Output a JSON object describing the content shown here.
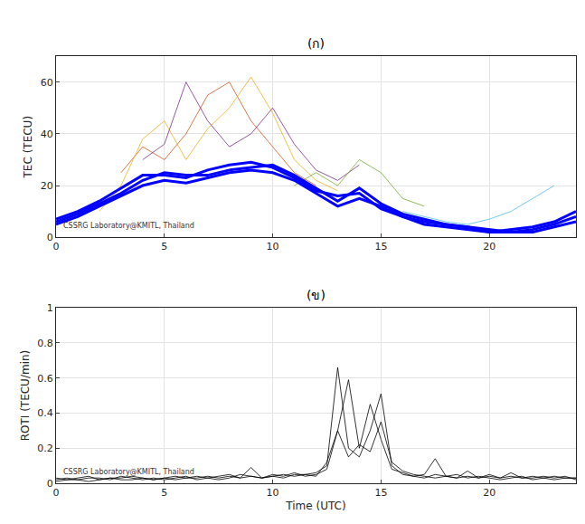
{
  "chart_data": [
    {
      "type": "line",
      "title": "(ก)",
      "ylabel": "TEC (TECU)",
      "annotation": "CSSRG Laboratory@KMITL, Thailand",
      "grid": true,
      "x": [
        0,
        1,
        2,
        3,
        4,
        5,
        6,
        7,
        8,
        9,
        10,
        11,
        12,
        13,
        14,
        15,
        16,
        17,
        18,
        19,
        20,
        21,
        22,
        23,
        24
      ],
      "xlim": [
        0,
        24
      ],
      "xticks": [
        0,
        5,
        10,
        15,
        20
      ],
      "ylim": [
        0,
        70
      ],
      "yticks": [
        0,
        20,
        40,
        60
      ],
      "series": [
        {
          "color": "#d95319",
          "line_style": "thin",
          "values": [
            null,
            null,
            null,
            25,
            35,
            30,
            40,
            55,
            60,
            45,
            35,
            25,
            20,
            null,
            null,
            null,
            null,
            null,
            null,
            null,
            null,
            null,
            null,
            null,
            null
          ]
        },
        {
          "color": "#edb120",
          "line_style": "thin",
          "values": [
            null,
            null,
            10,
            20,
            38,
            45,
            30,
            42,
            50,
            62,
            48,
            30,
            22,
            18,
            null,
            null,
            null,
            null,
            null,
            null,
            null,
            null,
            null,
            null,
            null
          ]
        },
        {
          "color": "#7e2f8e",
          "line_style": "thin",
          "values": [
            null,
            null,
            null,
            null,
            30,
            36,
            60,
            45,
            35,
            40,
            50,
            36,
            26,
            22,
            28,
            null,
            null,
            null,
            null,
            null,
            null,
            null,
            null,
            null,
            null
          ]
        },
        {
          "color": "#77ac30",
          "line_style": "thin",
          "values": [
            null,
            null,
            null,
            null,
            null,
            null,
            null,
            null,
            null,
            null,
            null,
            20,
            25,
            20,
            30,
            25,
            15,
            12,
            null,
            null,
            null,
            null,
            null,
            null,
            null
          ]
        },
        {
          "color": "#4dbeee",
          "line_style": "thin",
          "values": [
            null,
            null,
            null,
            null,
            null,
            null,
            null,
            null,
            null,
            null,
            null,
            null,
            null,
            null,
            null,
            null,
            10,
            8,
            6,
            5,
            7,
            10,
            15,
            20,
            null
          ]
        },
        {
          "color": "#0000ff",
          "line_style": "thick",
          "values": [
            7,
            10,
            14,
            19,
            24,
            24,
            23,
            26,
            28,
            29,
            27,
            23,
            18,
            16,
            17,
            11,
            8,
            6,
            5,
            4,
            2,
            3,
            4,
            6,
            10
          ]
        },
        {
          "color": "#0000ff",
          "line_style": "thick",
          "values": [
            6,
            9,
            13,
            17,
            22,
            25,
            24,
            24,
            26,
            27,
            28,
            24,
            19,
            14,
            19,
            13,
            9,
            7,
            5,
            4,
            3,
            2,
            3,
            5,
            8
          ]
        },
        {
          "color": "#0000ff",
          "line_style": "thick",
          "values": [
            5,
            8,
            12,
            16,
            20,
            22,
            21,
            23,
            25,
            26,
            25,
            22,
            17,
            12,
            15,
            12,
            8,
            5,
            4,
            3,
            2,
            2,
            2,
            4,
            6
          ]
        }
      ]
    },
    {
      "type": "line",
      "title": "(ข)",
      "xlabel": "Time (UTC)",
      "ylabel": "ROTI (TECU/min)",
      "annotation": "CSSRG Laboratory@KMITL, Thailand",
      "grid": true,
      "x": [
        0,
        0.5,
        1,
        1.5,
        2,
        2.5,
        3,
        3.5,
        4,
        4.5,
        5,
        5.5,
        6,
        6.5,
        7,
        7.5,
        8,
        8.5,
        9,
        9.5,
        10,
        10.5,
        11,
        11.5,
        12,
        12.5,
        13,
        13.5,
        14,
        14.5,
        15,
        15.5,
        16,
        16.5,
        17,
        17.5,
        18,
        18.5,
        19,
        19.5,
        20,
        20.5,
        21,
        21.5,
        22,
        22.5,
        23,
        23.5,
        24
      ],
      "xlim": [
        0,
        24
      ],
      "xticks": [
        0,
        5,
        10,
        15,
        20
      ],
      "ylim": [
        0,
        1
      ],
      "yticks": [
        0,
        0.2,
        0.4,
        0.6,
        0.8,
        1
      ],
      "series": [
        {
          "color": "#000000",
          "line_style": "thin",
          "values": [
            0.03,
            0.02,
            0.03,
            0.04,
            0.02,
            0.03,
            0.03,
            0.04,
            0.03,
            0.02,
            0.03,
            0.04,
            0.03,
            0.03,
            0.04,
            0.03,
            0.04,
            0.03,
            0.09,
            0.03,
            0.04,
            0.05,
            0.04,
            0.05,
            0.06,
            0.1,
            0.66,
            0.2,
            0.15,
            0.3,
            0.51,
            0.1,
            0.05,
            0.04,
            0.05,
            0.14,
            0.04,
            0.03,
            0.04,
            0.03,
            0.05,
            0.03,
            0.04,
            0.03,
            0.04,
            0.03,
            0.04,
            0.03,
            0.03
          ]
        },
        {
          "color": "#000000",
          "line_style": "thin",
          "values": [
            0.02,
            0.03,
            0.02,
            0.03,
            0.03,
            0.02,
            0.04,
            0.03,
            0.02,
            0.03,
            0.02,
            0.03,
            0.04,
            0.02,
            0.03,
            0.04,
            0.05,
            0.03,
            0.04,
            0.03,
            0.05,
            0.04,
            0.06,
            0.04,
            0.05,
            0.08,
            0.3,
            0.59,
            0.2,
            0.45,
            0.25,
            0.08,
            0.06,
            0.04,
            0.03,
            0.05,
            0.04,
            0.03,
            0.07,
            0.03,
            0.04,
            0.03,
            0.06,
            0.03,
            0.03,
            0.04,
            0.03,
            0.04,
            0.02
          ]
        },
        {
          "color": "#000000",
          "line_style": "thin",
          "values": [
            0.01,
            0.02,
            0.02,
            0.01,
            0.02,
            0.03,
            0.02,
            0.02,
            0.03,
            0.02,
            0.03,
            0.02,
            0.03,
            0.04,
            0.03,
            0.02,
            0.03,
            0.05,
            0.04,
            0.03,
            0.04,
            0.03,
            0.05,
            0.05,
            0.04,
            0.12,
            0.3,
            0.15,
            0.22,
            0.18,
            0.35,
            0.12,
            0.07,
            0.05,
            0.04,
            0.03,
            0.04,
            0.05,
            0.03,
            0.04,
            0.03,
            0.02,
            0.03,
            0.04,
            0.02,
            0.03,
            0.02,
            0.03,
            0.03
          ]
        }
      ]
    }
  ]
}
